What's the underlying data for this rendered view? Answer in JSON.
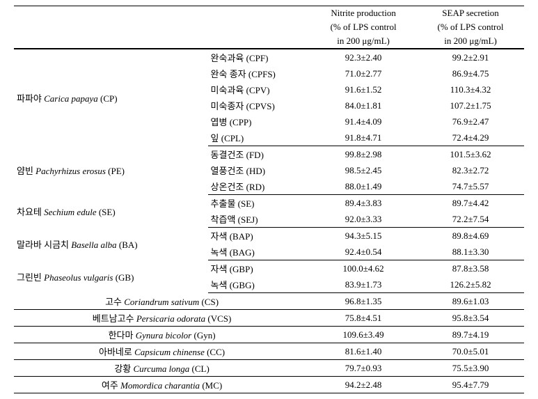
{
  "header": {
    "nitrite": {
      "line1": "Nitrite production",
      "line2": "(% of LPS control",
      "line3": "in 200 μg/mL)"
    },
    "seap": {
      "line1": "SEAP secretion",
      "line2": "(% of LPS control",
      "line3": "in 200 μg/mL)"
    }
  },
  "groups": [
    {
      "kr": "파파야 ",
      "latin": "Carica papaya",
      "code": " (CP)",
      "rows": [
        {
          "sub": "완숙과육 (CPF)",
          "n": "92.3±2.40",
          "s": "99.2±2.91"
        },
        {
          "sub": "완숙 종자 (CPFS)",
          "n": "71.0±2.77",
          "s": "86.9±4.75"
        },
        {
          "sub": "미숙과육 (CPV)",
          "n": "91.6±1.52",
          "s": "110.3±4.32"
        },
        {
          "sub": "미숙종자 (CPVS)",
          "n": "84.0±1.81",
          "s": "107.2±1.75"
        },
        {
          "sub": "엽병 (CPP)",
          "n": "91.4±4.09",
          "s": "76.9±2.47"
        },
        {
          "sub": "잎 (CPL)",
          "n": "91.8±4.71",
          "s": "72.4±4.29"
        }
      ]
    },
    {
      "kr": "얌빈 ",
      "latin": "Pachyrhizus erosus",
      "code": " (PE)",
      "rows": [
        {
          "sub": "동결건조 (FD)",
          "n": "99.8±2.98",
          "s": "101.5±3.62"
        },
        {
          "sub": "열풍건조 (HD)",
          "n": "98.5±2.45",
          "s": "82.3±2.72"
        },
        {
          "sub": "상온건조 (RD)",
          "n": "88.0±1.49",
          "s": "74.7±5.57"
        }
      ]
    },
    {
      "kr": "차요테 ",
      "latin": "Sechium edule",
      "code": " (SE)",
      "rows": [
        {
          "sub": "추출물 (SE)",
          "n": "89.4±3.83",
          "s": "89.7±4.42"
        },
        {
          "sub": "착즙액 (SEJ)",
          "n": "92.0±3.33",
          "s": "72.2±7.54"
        }
      ]
    },
    {
      "kr": "말라바 시금치 ",
      "latin": "Basella alba",
      "code": " (BA)",
      "rows": [
        {
          "sub": "자색 (BAP)",
          "n": "94.3±5.15",
          "s": "89.8±4.69"
        },
        {
          "sub": "녹색 (BAG)",
          "n": "92.4±0.54",
          "s": "88.1±3.30"
        }
      ]
    },
    {
      "kr": "그린빈 ",
      "latin": "Phaseolus vulgaris",
      "code": " (GB)",
      "rows": [
        {
          "sub": "자색 (GBP)",
          "n": "100.0±4.62",
          "s": "87.8±3.58"
        },
        {
          "sub": "녹색 (GBG)",
          "n": "83.9±1.73",
          "s": "126.2±5.82"
        }
      ]
    }
  ],
  "singles": [
    {
      "kr": "고수 ",
      "latin": "Coriandrum sativum",
      "code": " (CS)",
      "n": "96.8±1.35",
      "s": "89.6±1.03"
    },
    {
      "kr": "베트남고수 ",
      "latin": "Persicaria odorata",
      "code": " (VCS)",
      "n": "75.8±4.51",
      "s": "95.8±3.54"
    },
    {
      "kr": "한다마 ",
      "latin": "Gynura bicolor",
      "code": " (Gyn)",
      "n": "109.6±3.49",
      "s": "89.7±4.19"
    },
    {
      "kr": "아바네로 ",
      "latin": "Capsicum chinense",
      "code": " (CC)",
      "n": "81.6±1.40",
      "s": "70.0±5.01"
    },
    {
      "kr": "강황 ",
      "latin": "Curcuma longa",
      "code": " (CL)",
      "n": "79.7±0.93",
      "s": "75.5±3.90"
    },
    {
      "kr": "여주 ",
      "latin": "Momordica charantia",
      "code": " (MC)",
      "n": "94.2±2.48",
      "s": "95.4±7.79"
    }
  ]
}
